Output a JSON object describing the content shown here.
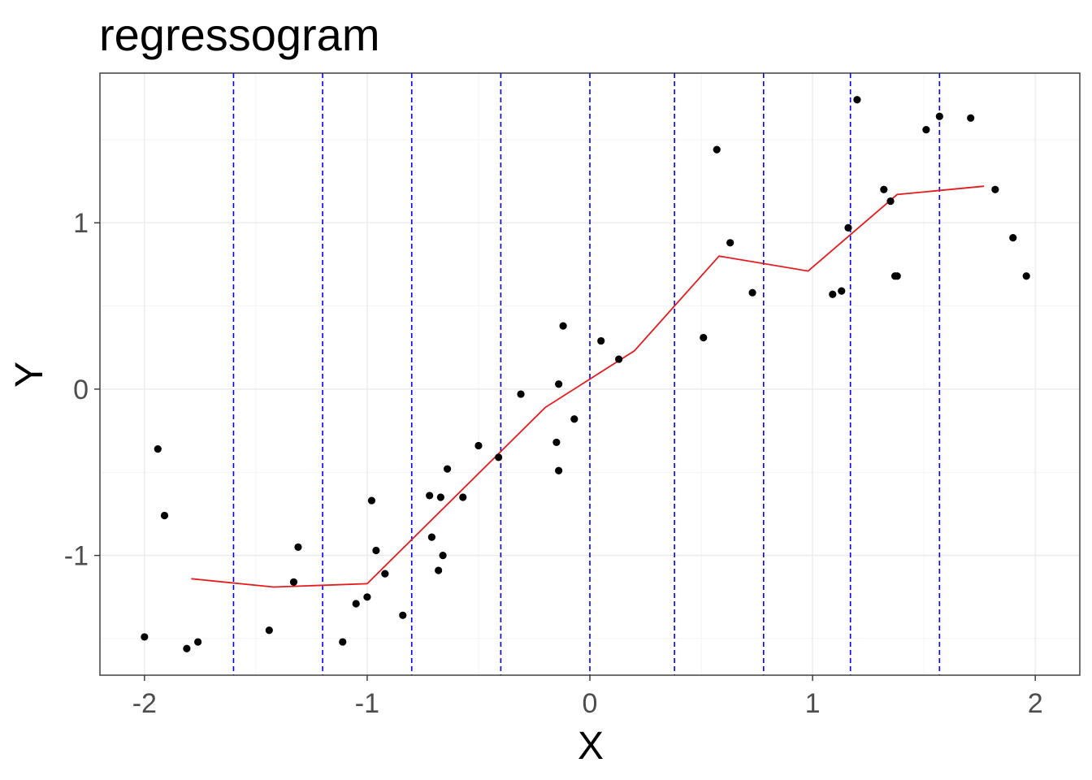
{
  "chart_data": {
    "type": "scatter",
    "title": "regressogram",
    "xlabel": "X",
    "ylabel": "Y",
    "xlim": [
      -2.2,
      2.2
    ],
    "ylim": [
      -1.72,
      1.9
    ],
    "x_ticks": [
      -2,
      -1,
      0,
      1,
      2
    ],
    "y_ticks": [
      -1,
      0,
      1
    ],
    "x_tick_labels": [
      "-2",
      "-1",
      "0",
      "1",
      "2"
    ],
    "y_tick_labels": [
      "-1",
      "0",
      "1"
    ],
    "grid": true,
    "legend": "none",
    "colors": {
      "points": "#000000",
      "regression_line": "#e41a1c",
      "bin_boundaries": "#0000ff"
    },
    "bin_boundaries": [
      -1.6,
      -1.2,
      -0.8,
      -0.4,
      0.0,
      0.38,
      0.78,
      1.17,
      1.57
    ],
    "points": [
      {
        "x": -2.0,
        "y": -1.49
      },
      {
        "x": -1.94,
        "y": -0.36
      },
      {
        "x": -1.91,
        "y": -0.76
      },
      {
        "x": -1.81,
        "y": -1.56
      },
      {
        "x": -1.76,
        "y": -1.52
      },
      {
        "x": -1.44,
        "y": -1.45
      },
      {
        "x": -1.33,
        "y": -1.16
      },
      {
        "x": -1.31,
        "y": -0.95
      },
      {
        "x": -1.11,
        "y": -1.52
      },
      {
        "x": -1.05,
        "y": -1.29
      },
      {
        "x": -1.0,
        "y": -1.25
      },
      {
        "x": -0.98,
        "y": -0.67
      },
      {
        "x": -0.96,
        "y": -0.97
      },
      {
        "x": -0.92,
        "y": -1.11
      },
      {
        "x": -0.84,
        "y": -1.36
      },
      {
        "x": -0.72,
        "y": -0.64
      },
      {
        "x": -0.71,
        "y": -0.89
      },
      {
        "x": -0.68,
        "y": -1.09
      },
      {
        "x": -0.67,
        "y": -0.65
      },
      {
        "x": -0.66,
        "y": -1.0
      },
      {
        "x": -0.64,
        "y": -0.48
      },
      {
        "x": -0.57,
        "y": -0.65
      },
      {
        "x": -0.5,
        "y": -0.34
      },
      {
        "x": -0.41,
        "y": -0.41
      },
      {
        "x": -0.31,
        "y": -0.03
      },
      {
        "x": -0.15,
        "y": -0.32
      },
      {
        "x": -0.14,
        "y": -0.49
      },
      {
        "x": -0.14,
        "y": 0.03
      },
      {
        "x": -0.12,
        "y": 0.38
      },
      {
        "x": -0.07,
        "y": -0.18
      },
      {
        "x": 0.05,
        "y": 0.29
      },
      {
        "x": 0.13,
        "y": 0.18
      },
      {
        "x": 0.51,
        "y": 0.31
      },
      {
        "x": 0.57,
        "y": 1.44
      },
      {
        "x": 0.63,
        "y": 0.88
      },
      {
        "x": 0.73,
        "y": 0.58
      },
      {
        "x": 1.09,
        "y": 0.57
      },
      {
        "x": 1.13,
        "y": 0.59
      },
      {
        "x": 1.16,
        "y": 0.97
      },
      {
        "x": 1.2,
        "y": 1.74
      },
      {
        "x": 1.32,
        "y": 1.2
      },
      {
        "x": 1.35,
        "y": 1.13
      },
      {
        "x": 1.37,
        "y": 0.68
      },
      {
        "x": 1.38,
        "y": 0.68
      },
      {
        "x": 1.51,
        "y": 1.56
      },
      {
        "x": 1.57,
        "y": 1.64
      },
      {
        "x": 1.71,
        "y": 1.63
      },
      {
        "x": 1.82,
        "y": 1.2
      },
      {
        "x": 1.9,
        "y": 0.91
      },
      {
        "x": 1.96,
        "y": 0.68
      }
    ],
    "regression_line": [
      {
        "x": -1.79,
        "y": -1.14
      },
      {
        "x": -1.42,
        "y": -1.19
      },
      {
        "x": -1.0,
        "y": -1.17
      },
      {
        "x": -0.2,
        "y": -0.11
      },
      {
        "x": 0.2,
        "y": 0.23
      },
      {
        "x": 0.58,
        "y": 0.8
      },
      {
        "x": 0.98,
        "y": 0.71
      },
      {
        "x": 1.38,
        "y": 1.17
      },
      {
        "x": 1.77,
        "y": 1.22
      }
    ]
  }
}
